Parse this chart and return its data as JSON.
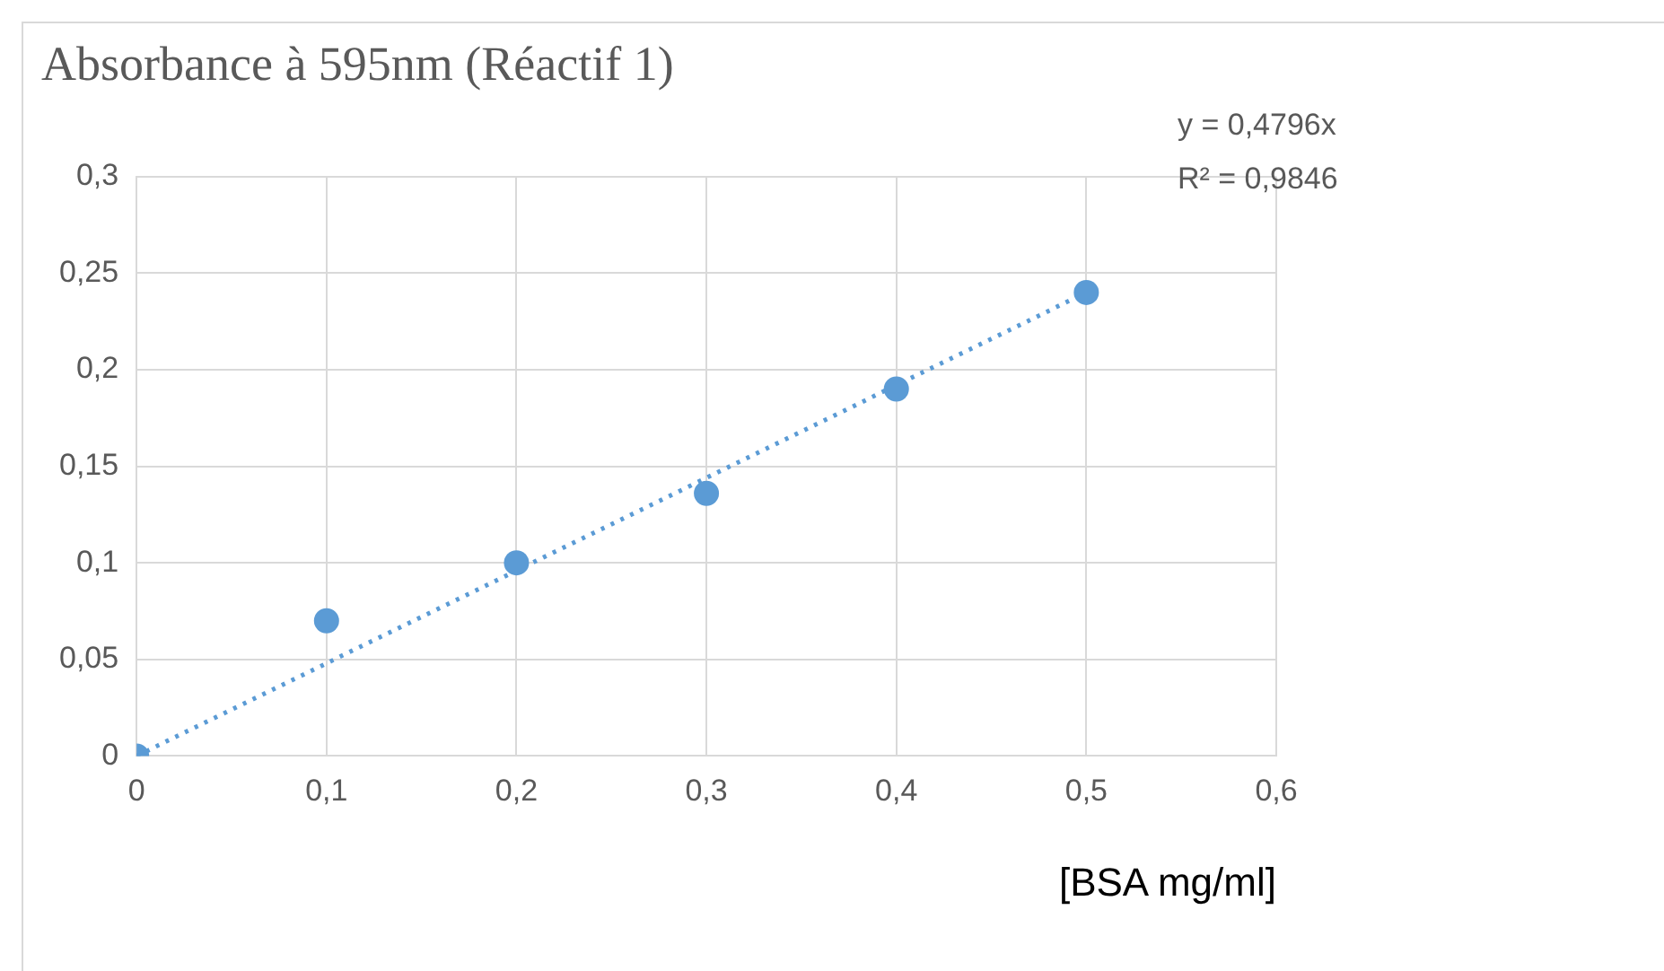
{
  "chart_data": {
    "type": "scatter",
    "title": "Absorbance à 595nm (Réactif 1)",
    "xlabel": "[BSA mg/ml]",
    "x": [
      0,
      0.1,
      0.2,
      0.3,
      0.4,
      0.5
    ],
    "series": [
      {
        "color": "#5b9bd5",
        "values": [
          0,
          0.07,
          0.1,
          0.136,
          0.19,
          0.24
        ],
        "marker": "circle"
      },
      {
        "type": "line",
        "color": "#5b9bd5",
        "x": [
          0,
          0.5
        ],
        "values": [
          0,
          0.24
        ],
        "line_style": "dotted",
        "marker": "none"
      }
    ],
    "xlim": [
      0,
      0.6
    ],
    "xticks": [
      0,
      {
        "value": 0.1,
        "label": "0,1"
      },
      {
        "value": 0.2,
        "label": "0,2"
      },
      {
        "value": 0.3,
        "label": "0,3"
      },
      {
        "value": 0.4,
        "label": "0,4"
      },
      {
        "value": 0.5,
        "label": "0,5"
      },
      {
        "value": 0.6,
        "label": "0,6"
      }
    ],
    "ylim": [
      0,
      0.3
    ],
    "yticks": [
      0,
      {
        "value": 0.05,
        "label": "0,05"
      },
      {
        "value": 0.1,
        "label": "0,1"
      },
      {
        "value": 0.15,
        "label": "0,15"
      },
      {
        "value": 0.2,
        "label": "0,2"
      },
      {
        "value": 0.25,
        "label": "0,25"
      },
      {
        "value": 0.3,
        "label": "0,3"
      }
    ],
    "grid": true,
    "legend": false,
    "annotations": [
      "y = 0,4796x",
      "R² = 0,9846"
    ]
  }
}
